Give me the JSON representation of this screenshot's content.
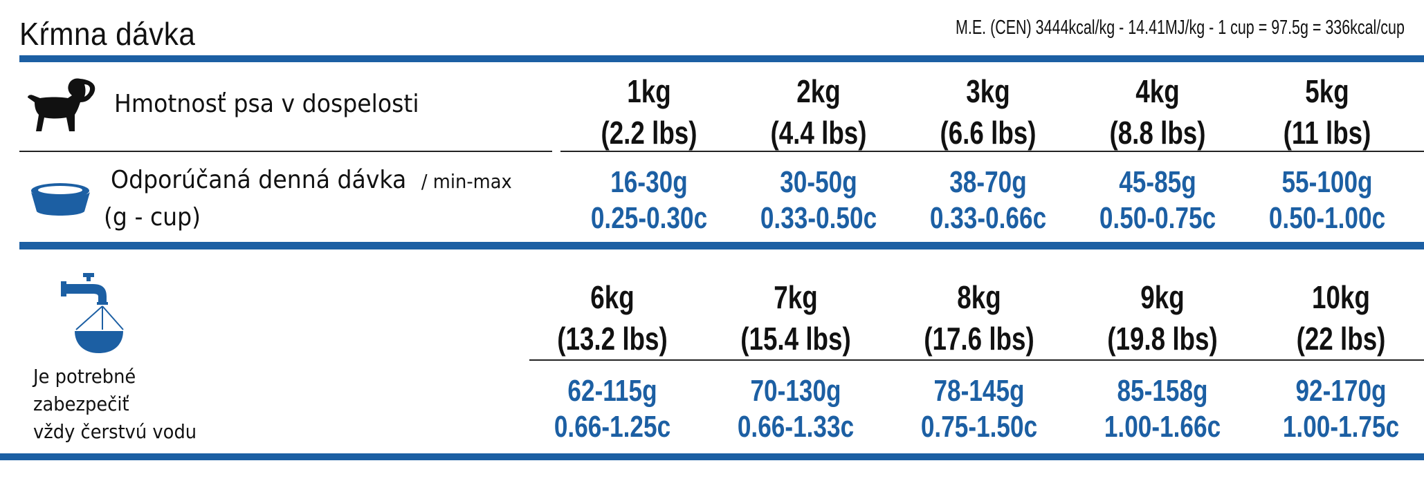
{
  "header": {
    "title": "Kŕmna dávka",
    "energy_note": "M.E. (CEN) 3444kcal/kg - 14.41MJ/kg - 1 cup = 97.5g = 336kcal/cup"
  },
  "rows": {
    "weight_label": "Hmotnosť psa v dospelosti",
    "dose_label": "Odporúčaná denná dávka",
    "dose_suffix": "/ min-max",
    "dose_units": "(g - cup)",
    "water_note": [
      "Je potrebné",
      "zabezpečiť",
      "vždy čerstvú vodu"
    ]
  },
  "icons": {
    "dog": "dog-icon",
    "bowl": "food-bowl-icon",
    "water": "water-tap-icon",
    "accent": "#1c5fa3"
  },
  "table_top": [
    {
      "weight": "1kg",
      "lbs": "(2.2 lbs)",
      "grams": "16-30g",
      "cups": "0.25-0.30c"
    },
    {
      "weight": "2kg",
      "lbs": "(4.4 lbs)",
      "grams": "30-50g",
      "cups": "0.33-0.50c"
    },
    {
      "weight": "3kg",
      "lbs": "(6.6 lbs)",
      "grams": "38-70g",
      "cups": "0.33-0.66c"
    },
    {
      "weight": "4kg",
      "lbs": "(8.8 lbs)",
      "grams": "45-85g",
      "cups": "0.50-0.75c"
    },
    {
      "weight": "5kg",
      "lbs": "(11 lbs)",
      "grams": "55-100g",
      "cups": "0.50-1.00c"
    }
  ],
  "table_bottom": [
    {
      "weight": "6kg",
      "lbs": "(13.2 lbs)",
      "grams": "62-115g",
      "cups": "0.66-1.25c"
    },
    {
      "weight": "7kg",
      "lbs": "(15.4 lbs)",
      "grams": "70-130g",
      "cups": "0.66-1.33c"
    },
    {
      "weight": "8kg",
      "lbs": "(17.6 lbs)",
      "grams": "78-145g",
      "cups": "0.75-1.50c"
    },
    {
      "weight": "9kg",
      "lbs": "(19.8 lbs)",
      "grams": "85-158g",
      "cups": "1.00-1.66c"
    },
    {
      "weight": "10kg",
      "lbs": "(22 lbs)",
      "grams": "92-170g",
      "cups": "1.00-1.75c"
    }
  ]
}
